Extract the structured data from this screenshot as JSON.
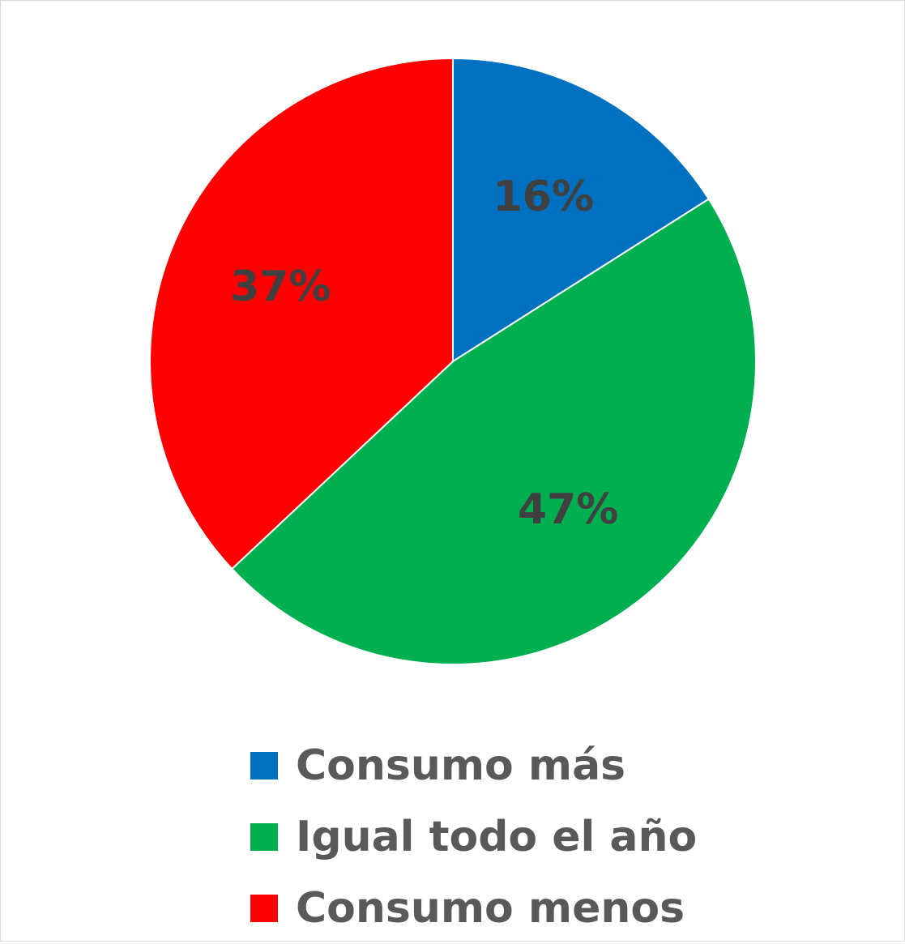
{
  "chart_data": {
    "type": "pie",
    "title": "",
    "categories": [
      "Consumo más",
      "Igual todo el año",
      "Consumo menos"
    ],
    "values": [
      16,
      47,
      37
    ],
    "data_labels": [
      "16%",
      "47%",
      "37%"
    ],
    "colors": [
      "#0070C0",
      "#00B050",
      "#FF0000"
    ],
    "legend_placement": "bottom",
    "start_angle": "12 o'clock",
    "direction": "clockwise"
  }
}
